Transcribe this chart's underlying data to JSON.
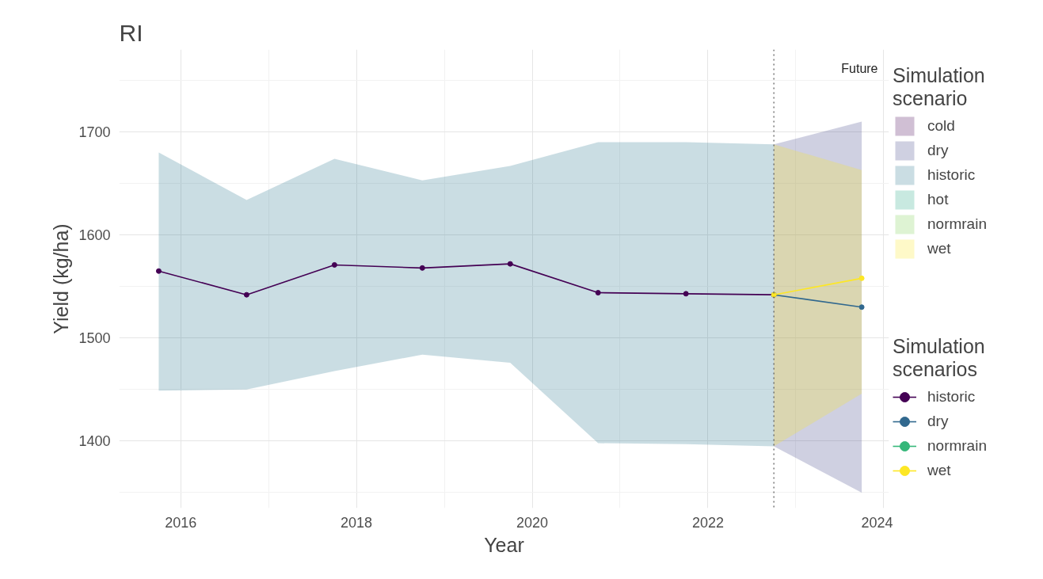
{
  "chart_data": {
    "type": "line",
    "title": "RI",
    "xlabel": "Year",
    "ylabel": "Yield (kg/ha)",
    "legend_title": [
      "Simulation scenario",
      "Simulation scenarios"
    ],
    "xlim": [
      2015.3,
      2024.06
    ],
    "ylim": [
      1335,
      1780
    ],
    "xticks": [
      2016,
      2018,
      2020,
      2022,
      2024
    ],
    "yticks": [
      1400,
      1500,
      1600,
      1700
    ],
    "grid": true,
    "legend": "right",
    "marker": "circle",
    "line_style": "solid",
    "ref_lines": [
      {
        "axis": "x",
        "value": 2022.75,
        "line_style": "dotted",
        "color": "#555555"
      }
    ],
    "annotations": [
      "Future"
    ],
    "series": [
      {
        "type": "area",
        "name": "cold",
        "color": "#440154"
      },
      {
        "type": "area",
        "name": "dry",
        "color": "#414487",
        "x": [
          2022.75,
          2023.75
        ],
        "values": [
          null,
          null
        ],
        "lower": [
          1395,
          1350
        ],
        "upper": [
          1688,
          1710
        ]
      },
      {
        "type": "area",
        "name": "historic",
        "color": "#2a788e",
        "x": [
          2015.75,
          2016.75,
          2017.75,
          2018.75,
          2019.75,
          2020.75,
          2021.75,
          2022.75
        ],
        "values": [
          null,
          null,
          null,
          null,
          null,
          null,
          null,
          null
        ],
        "lower": [
          1449,
          1450,
          1468,
          1484,
          1476,
          1398,
          1397,
          1395
        ],
        "upper": [
          1680,
          1634,
          1674,
          1653,
          1667,
          1690,
          1690,
          1688
        ]
      },
      {
        "type": "area",
        "name": "hot",
        "color": "#22a884"
      },
      {
        "type": "area",
        "name": "normrain",
        "color": "#7ad151"
      },
      {
        "type": "area",
        "name": "wet",
        "color": "#fde725",
        "x": [
          2022.75,
          2023.75
        ],
        "values": [
          null,
          null
        ],
        "lower": [
          1395,
          1446
        ],
        "upper": [
          1688,
          1663
        ]
      },
      {
        "name": "historic",
        "color": "#440154",
        "x": [
          2015.75,
          2016.75,
          2017.75,
          2018.75,
          2019.75,
          2020.75,
          2021.75,
          2022.75
        ],
        "values": [
          1565,
          1542,
          1571,
          1568,
          1572,
          1544,
          1543,
          1542
        ]
      },
      {
        "name": "dry",
        "color": "#31688e",
        "x": [
          2022.75,
          2023.75
        ],
        "values": [
          1542,
          1530
        ]
      },
      {
        "name": "normrain",
        "color": "#35b779"
      },
      {
        "name": "wet",
        "color": "#fde725",
        "x": [
          2022.75,
          2023.75
        ],
        "values": [
          1542,
          1558
        ]
      }
    ]
  }
}
